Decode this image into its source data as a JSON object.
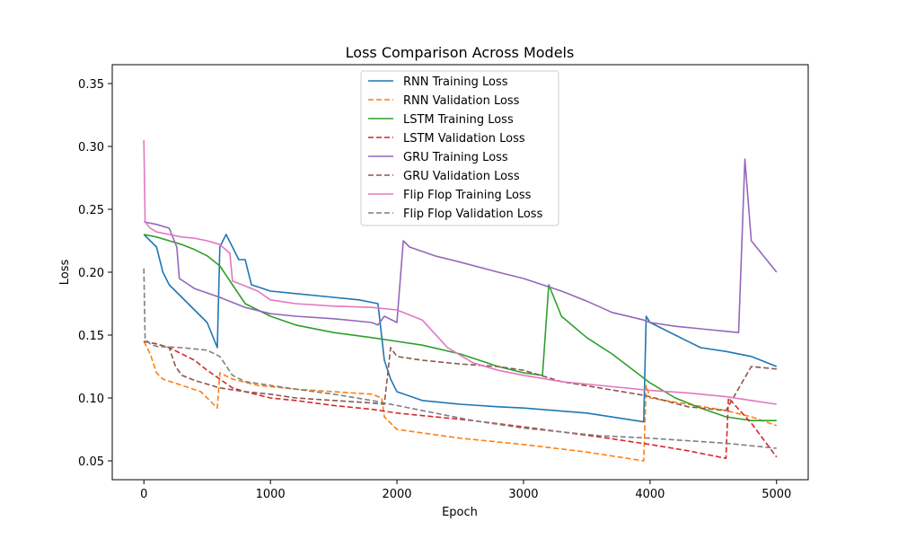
{
  "chart_data": {
    "type": "line",
    "title": "Loss Comparison Across Models",
    "xlabel": "Epoch",
    "ylabel": "Loss",
    "xlim": [
      -250,
      5250
    ],
    "ylim": [
      0.035,
      0.365
    ],
    "xticks": [
      0,
      1000,
      2000,
      3000,
      4000,
      5000
    ],
    "yticks": [
      0.05,
      0.1,
      0.15,
      0.2,
      0.25,
      0.3,
      0.35
    ],
    "ytick_labels": [
      "0.05",
      "0.10",
      "0.15",
      "0.20",
      "0.25",
      "0.30",
      "0.35"
    ],
    "legend_position": "top-center",
    "series": [
      {
        "name": "RNN Training Loss",
        "color": "#1f77b4",
        "dash": "solid",
        "x": [
          0,
          100,
          150,
          200,
          300,
          400,
          500,
          580,
          600,
          650,
          700,
          750,
          800,
          850,
          1000,
          1200,
          1500,
          1700,
          1850,
          1900,
          1950,
          2000,
          2200,
          2500,
          2800,
          3000,
          3500,
          3950,
          3970,
          4000,
          4200,
          4400,
          4600,
          4800,
          5000
        ],
        "y": [
          0.23,
          0.22,
          0.2,
          0.19,
          0.18,
          0.17,
          0.16,
          0.14,
          0.22,
          0.23,
          0.22,
          0.21,
          0.21,
          0.19,
          0.185,
          0.183,
          0.18,
          0.178,
          0.175,
          0.13,
          0.115,
          0.105,
          0.098,
          0.095,
          0.093,
          0.092,
          0.088,
          0.081,
          0.165,
          0.16,
          0.15,
          0.14,
          0.137,
          0.133,
          0.125
        ]
      },
      {
        "name": "RNN Validation Loss",
        "color": "#ff7f0e",
        "dash": "dashed",
        "x": [
          0,
          50,
          100,
          150,
          300,
          450,
          580,
          600,
          700,
          900,
          1200,
          1500,
          1800,
          1880,
          1900,
          2000,
          2500,
          3000,
          3500,
          3950,
          3970,
          4000,
          4300,
          4600,
          4800,
          5000
        ],
        "y": [
          0.145,
          0.135,
          0.12,
          0.115,
          0.11,
          0.105,
          0.092,
          0.12,
          0.115,
          0.11,
          0.107,
          0.105,
          0.103,
          0.1,
          0.085,
          0.075,
          0.068,
          0.063,
          0.057,
          0.05,
          0.11,
          0.1,
          0.095,
          0.09,
          0.085,
          0.078
        ]
      },
      {
        "name": "LSTM Training Loss",
        "color": "#2ca02c",
        "dash": "solid",
        "x": [
          0,
          100,
          200,
          300,
          400,
          500,
          600,
          700,
          800,
          1000,
          1200,
          1500,
          1800,
          2000,
          2200,
          2500,
          2800,
          3000,
          3150,
          3200,
          3300,
          3500,
          3700,
          4000,
          4200,
          4400,
          4600,
          4800,
          5000
        ],
        "y": [
          0.23,
          0.228,
          0.225,
          0.222,
          0.218,
          0.213,
          0.205,
          0.19,
          0.175,
          0.165,
          0.158,
          0.152,
          0.148,
          0.145,
          0.142,
          0.135,
          0.125,
          0.12,
          0.118,
          0.19,
          0.165,
          0.148,
          0.135,
          0.112,
          0.1,
          0.092,
          0.085,
          0.082,
          0.082
        ]
      },
      {
        "name": "LSTM Validation Loss",
        "color": "#d62728",
        "dash": "dashed",
        "x": [
          0,
          100,
          200,
          300,
          400,
          500,
          600,
          700,
          800,
          1000,
          1200,
          1500,
          1800,
          2000,
          2300,
          2600,
          3000,
          3300,
          3600,
          4000,
          4300,
          4600,
          4620,
          4800,
          5000
        ],
        "y": [
          0.145,
          0.143,
          0.14,
          0.135,
          0.13,
          0.122,
          0.115,
          0.108,
          0.105,
          0.1,
          0.098,
          0.094,
          0.091,
          0.088,
          0.085,
          0.082,
          0.077,
          0.073,
          0.069,
          0.063,
          0.058,
          0.052,
          0.1,
          0.08,
          0.053
        ]
      },
      {
        "name": "GRU Training Loss",
        "color": "#9467bd",
        "dash": "solid",
        "x": [
          0,
          100,
          200,
          260,
          280,
          400,
          600,
          800,
          1000,
          1200,
          1500,
          1800,
          1850,
          1900,
          2000,
          2050,
          2100,
          2300,
          2500,
          2800,
          3000,
          3300,
          3500,
          3700,
          3950,
          4000,
          4200,
          4400,
          4600,
          4700,
          4750,
          4800,
          5000
        ],
        "y": [
          0.24,
          0.238,
          0.235,
          0.22,
          0.195,
          0.187,
          0.18,
          0.172,
          0.167,
          0.165,
          0.163,
          0.16,
          0.158,
          0.165,
          0.16,
          0.225,
          0.22,
          0.213,
          0.208,
          0.2,
          0.195,
          0.185,
          0.177,
          0.168,
          0.162,
          0.16,
          0.157,
          0.155,
          0.153,
          0.152,
          0.29,
          0.225,
          0.2
        ]
      },
      {
        "name": "GRU Validation Loss",
        "color": "#8c564b",
        "dash": "dashed",
        "x": [
          0,
          100,
          200,
          250,
          300,
          400,
          600,
          800,
          1000,
          1200,
          1500,
          1800,
          1900,
          1950,
          2000,
          2200,
          2500,
          2800,
          3000,
          3300,
          3600,
          3900,
          4000,
          4300,
          4600,
          4800,
          5000
        ],
        "y": [
          0.145,
          0.143,
          0.14,
          0.125,
          0.118,
          0.114,
          0.108,
          0.105,
          0.103,
          0.1,
          0.098,
          0.096,
          0.095,
          0.14,
          0.133,
          0.13,
          0.127,
          0.125,
          0.122,
          0.113,
          0.108,
          0.103,
          0.101,
          0.093,
          0.09,
          0.125,
          0.123
        ]
      },
      {
        "name": "Flip Flop Training Loss",
        "color": "#e377c2",
        "dash": "solid",
        "x": [
          0,
          10,
          50,
          100,
          200,
          300,
          400,
          500,
          600,
          680,
          700,
          900,
          1000,
          1200,
          1500,
          1800,
          2000,
          2200,
          2400,
          2600,
          2800,
          3000,
          3300,
          3600,
          4000,
          4300,
          4600,
          4800,
          5000
        ],
        "y": [
          0.305,
          0.24,
          0.235,
          0.232,
          0.23,
          0.228,
          0.227,
          0.225,
          0.222,
          0.215,
          0.193,
          0.185,
          0.178,
          0.175,
          0.173,
          0.172,
          0.17,
          0.162,
          0.14,
          0.128,
          0.122,
          0.118,
          0.113,
          0.11,
          0.106,
          0.104,
          0.101,
          0.098,
          0.095
        ]
      },
      {
        "name": "Flip Flop Validation Loss",
        "color": "#7f7f7f",
        "dash": "dashed",
        "x": [
          0,
          10,
          50,
          100,
          300,
          500,
          600,
          700,
          800,
          1000,
          1200,
          1500,
          1800,
          2000,
          2300,
          2600,
          3000,
          3300,
          3600,
          4000,
          4300,
          4600,
          5000
        ],
        "y": [
          0.203,
          0.147,
          0.143,
          0.141,
          0.14,
          0.138,
          0.133,
          0.118,
          0.113,
          0.11,
          0.107,
          0.103,
          0.098,
          0.094,
          0.088,
          0.082,
          0.076,
          0.073,
          0.07,
          0.068,
          0.066,
          0.064,
          0.06
        ]
      }
    ]
  }
}
